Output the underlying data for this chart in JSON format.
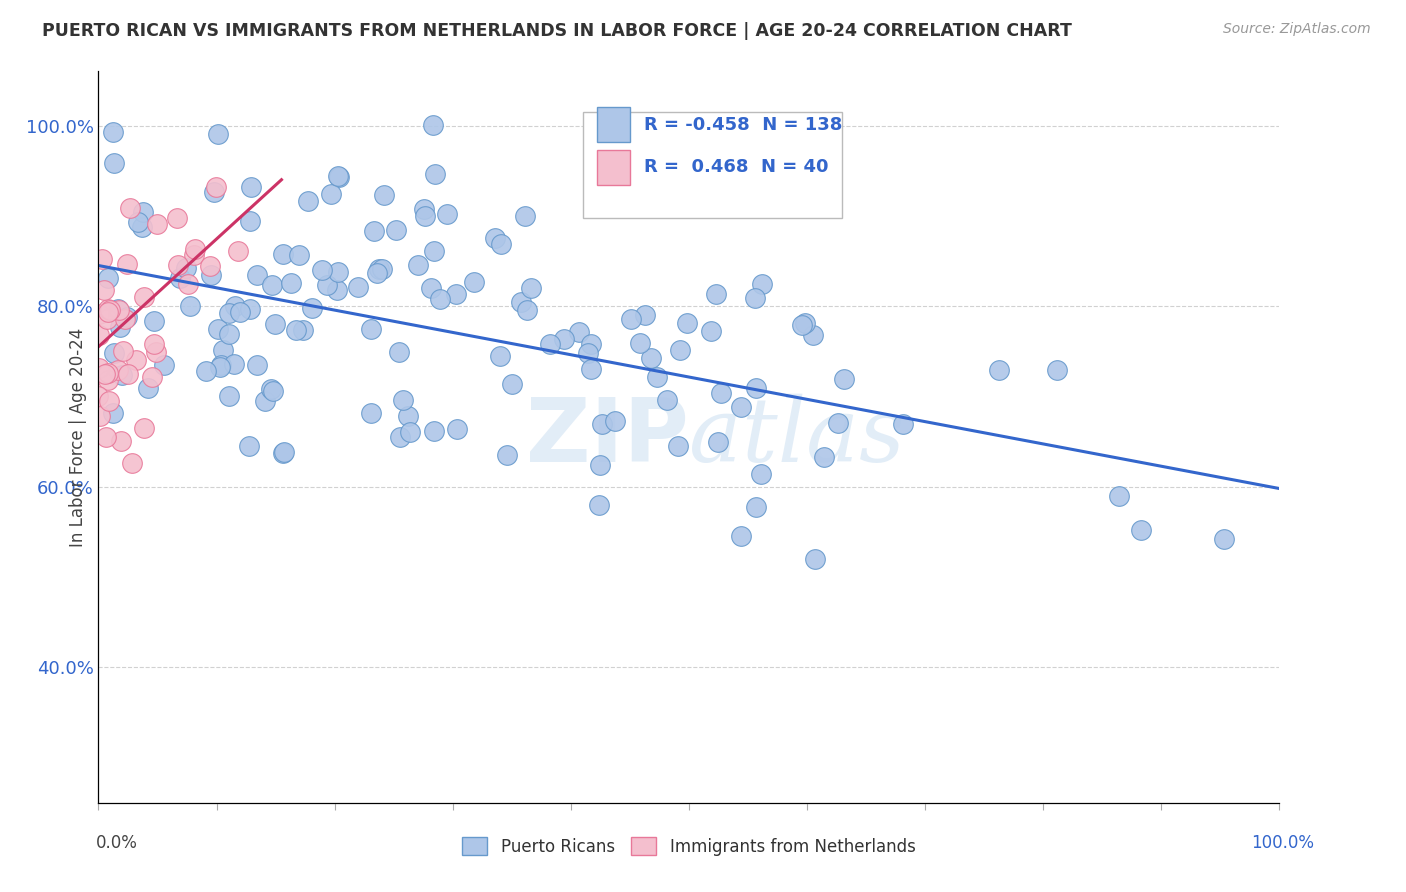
{
  "title": "PUERTO RICAN VS IMMIGRANTS FROM NETHERLANDS IN LABOR FORCE | AGE 20-24 CORRELATION CHART",
  "source": "Source: ZipAtlas.com",
  "ylabel": "In Labor Force | Age 20-24",
  "watermark": "ZIPatlas",
  "blue_R": -0.458,
  "blue_N": 138,
  "pink_R": 0.468,
  "pink_N": 40,
  "blue_color": "#aec6e8",
  "blue_edge_color": "#6699cc",
  "pink_color": "#f4bfce",
  "pink_edge_color": "#e87899",
  "blue_line_color": "#3366cc",
  "pink_line_color": "#cc3366",
  "background_color": "#ffffff",
  "grid_color": "#cccccc",
  "title_color": "#333333",
  "source_color": "#999999",
  "ytick_color": "#3366cc",
  "xlim": [
    0.0,
    1.0
  ],
  "ylim": [
    0.25,
    1.06
  ],
  "yticks": [
    0.4,
    0.6,
    0.8,
    1.0
  ],
  "ytick_labels": [
    "40.0%",
    "60.0%",
    "80.0%",
    "100.0%"
  ],
  "blue_line_x0": 0.0,
  "blue_line_x1": 1.0,
  "blue_line_y0": 0.845,
  "blue_line_y1": 0.598,
  "pink_line_x0": 0.0,
  "pink_line_x1": 0.155,
  "pink_line_y0": 0.755,
  "pink_line_y1": 0.94
}
